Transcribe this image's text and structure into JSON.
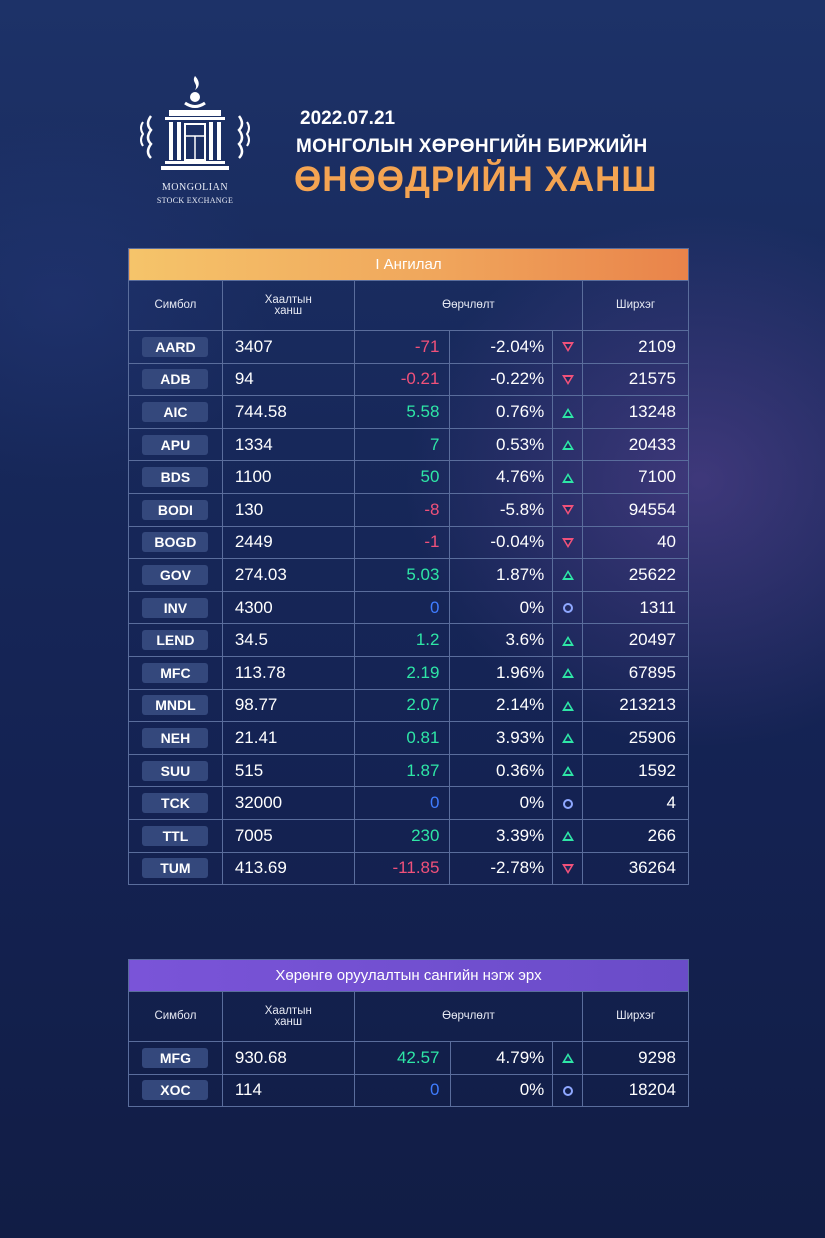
{
  "header": {
    "logo_line1": "MONGOLIAN",
    "logo_line2": "STOCK EXCHANGE",
    "date": "2022.07.21",
    "subtitle": "МОНГОЛЫН ХӨРӨНГИЙН БИРЖИЙН",
    "title": "ӨНӨӨДРИЙН ХАНШ"
  },
  "colors": {
    "up": "#2ee6a6",
    "down": "#f0517a",
    "zero": "#3f7cff",
    "category1_bar": "#f0a65c",
    "category2_bar": "#7a54d8"
  },
  "tables": [
    {
      "category": "I Ангилал",
      "headers": {
        "symbol": "Симбол",
        "close": "Хаалтын ханш",
        "change": "Өөрчлөлт",
        "volume": "Ширхэг"
      },
      "rows": [
        {
          "symbol": "AARD",
          "close": "3407",
          "change": "-71",
          "pct": "-2.04%",
          "dir": "down",
          "volume": "2109"
        },
        {
          "symbol": "ADB",
          "close": "94",
          "change": "-0.21",
          "pct": "-0.22%",
          "dir": "down",
          "volume": "21575"
        },
        {
          "symbol": "AIC",
          "close": "744.58",
          "change": "5.58",
          "pct": "0.76%",
          "dir": "up",
          "volume": "13248"
        },
        {
          "symbol": "APU",
          "close": "1334",
          "change": "7",
          "pct": "0.53%",
          "dir": "up",
          "volume": "20433"
        },
        {
          "symbol": "BDS",
          "close": "1100",
          "change": "50",
          "pct": "4.76%",
          "dir": "up",
          "volume": "7100"
        },
        {
          "symbol": "BODI",
          "close": "130",
          "change": "-8",
          "pct": "-5.8%",
          "dir": "down",
          "volume": "94554"
        },
        {
          "symbol": "BOGD",
          "close": "2449",
          "change": "-1",
          "pct": "-0.04%",
          "dir": "down",
          "volume": "40"
        },
        {
          "symbol": "GOV",
          "close": "274.03",
          "change": "5.03",
          "pct": "1.87%",
          "dir": "up",
          "volume": "25622"
        },
        {
          "symbol": "INV",
          "close": "4300",
          "change": "0",
          "pct": "0%",
          "dir": "flat",
          "volume": "1311"
        },
        {
          "symbol": "LEND",
          "close": "34.5",
          "change": "1.2",
          "pct": "3.6%",
          "dir": "up",
          "volume": "20497"
        },
        {
          "symbol": "MFC",
          "close": "113.78",
          "change": "2.19",
          "pct": "1.96%",
          "dir": "up",
          "volume": "67895"
        },
        {
          "symbol": "MNDL",
          "close": "98.77",
          "change": "2.07",
          "pct": "2.14%",
          "dir": "up",
          "volume": "213213"
        },
        {
          "symbol": "NEH",
          "close": "21.41",
          "change": "0.81",
          "pct": "3.93%",
          "dir": "up",
          "volume": "25906"
        },
        {
          "symbol": "SUU",
          "close": "515",
          "change": "1.87",
          "pct": "0.36%",
          "dir": "up",
          "volume": "1592"
        },
        {
          "symbol": "TCK",
          "close": "32000",
          "change": "0",
          "pct": "0%",
          "dir": "flat",
          "volume": "4"
        },
        {
          "symbol": "TTL",
          "close": "7005",
          "change": "230",
          "pct": "3.39%",
          "dir": "up",
          "volume": "266"
        },
        {
          "symbol": "TUM",
          "close": "413.69",
          "change": "-11.85",
          "pct": "-2.78%",
          "dir": "down",
          "volume": "36264"
        }
      ]
    },
    {
      "category": "Хөрөнгө оруулалтын сангийн нэгж эрх",
      "headers": {
        "symbol": "Симбол",
        "close": "Хаалтын ханш",
        "change": "Өөрчлөлт",
        "volume": "Ширхэг"
      },
      "rows": [
        {
          "symbol": "MFG",
          "close": "930.68",
          "change": "42.57",
          "pct": "4.79%",
          "dir": "up",
          "volume": "9298"
        },
        {
          "symbol": "XOC",
          "close": "114",
          "change": "0",
          "pct": "0%",
          "dir": "flat",
          "volume": "18204"
        }
      ]
    }
  ]
}
